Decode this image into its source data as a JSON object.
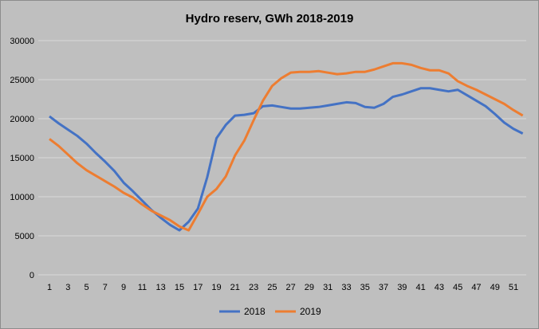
{
  "chart_data": {
    "type": "line",
    "title": "Hydro reserv, GWh 2018-2019",
    "xlabel": "",
    "ylabel": "",
    "x": [
      1,
      2,
      3,
      4,
      5,
      6,
      7,
      8,
      9,
      10,
      11,
      12,
      13,
      14,
      15,
      16,
      17,
      18,
      19,
      20,
      21,
      22,
      23,
      24,
      25,
      26,
      27,
      28,
      29,
      30,
      31,
      32,
      33,
      34,
      35,
      36,
      37,
      38,
      39,
      40,
      41,
      42,
      43,
      44,
      45,
      46,
      47,
      48,
      49,
      50,
      51,
      52
    ],
    "x_tick_labels": [
      "1",
      "3",
      "5",
      "7",
      "9",
      "11",
      "13",
      "15",
      "17",
      "19",
      "21",
      "23",
      "25",
      "27",
      "29",
      "31",
      "33",
      "35",
      "37",
      "39",
      "41",
      "43",
      "45",
      "47",
      "49",
      "51"
    ],
    "ylim": [
      0,
      30000
    ],
    "y_ticks": [
      "0",
      "5000",
      "10000",
      "15000",
      "20000",
      "25000",
      "30000"
    ],
    "grid": true,
    "legend_position": "bottom",
    "series": [
      {
        "name": "2018",
        "color": "#4472c4",
        "values": [
          20300,
          19400,
          18600,
          17800,
          16800,
          15600,
          14500,
          13300,
          11800,
          10700,
          9500,
          8300,
          7300,
          6400,
          5700,
          6800,
          8500,
          12500,
          17500,
          19200,
          20400,
          20500,
          20700,
          21600,
          21700,
          21500,
          21300,
          21300,
          21400,
          21500,
          21700,
          21900,
          22100,
          22000,
          21500,
          21400,
          21900,
          22800,
          23100,
          23500,
          23900,
          23900,
          23700,
          23500,
          23700,
          23000,
          22300,
          21600,
          20600,
          19500,
          18700,
          18100
        ]
      },
      {
        "name": "2019",
        "color": "#ed7d31",
        "values": [
          17400,
          16500,
          15400,
          14300,
          13400,
          12700,
          12000,
          11300,
          10500,
          9900,
          9000,
          8200,
          7600,
          7000,
          6200,
          5700,
          7800,
          10000,
          11000,
          12600,
          15300,
          17200,
          19800,
          22300,
          24200,
          25200,
          25900,
          26000,
          26000,
          26100,
          25900,
          25700,
          25800,
          26000,
          26000,
          26300,
          26700,
          27100,
          27100,
          26900,
          26500,
          26200,
          26200,
          25800,
          24800,
          24200,
          23700,
          23100,
          22500,
          21900,
          21100,
          20400
        ]
      }
    ]
  }
}
